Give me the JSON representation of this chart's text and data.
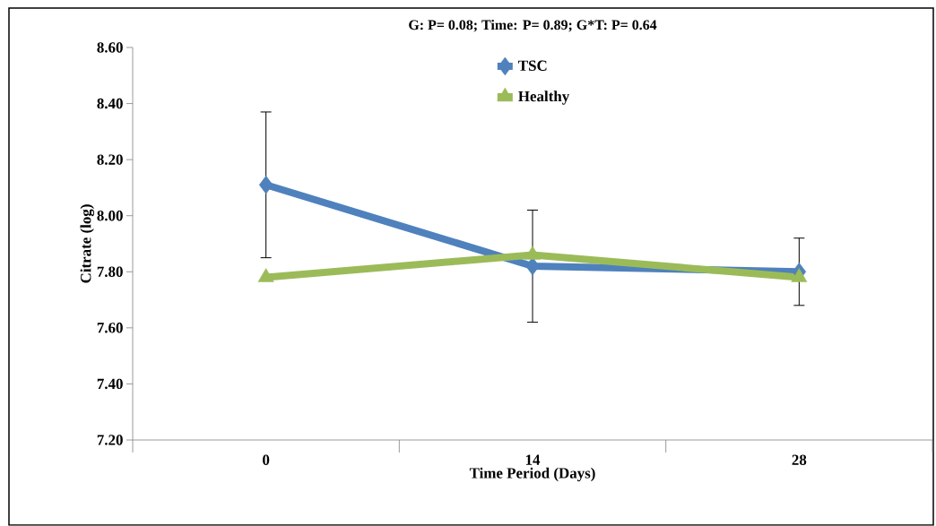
{
  "chart_data": {
    "type": "line",
    "title": "G: P= 0.08; Time: P= 0.89; G*T: P= 0.64",
    "xlabel": "Time Period (Days)",
    "ylabel": "Citrate (log)",
    "categories": [
      "0",
      "14",
      "28"
    ],
    "series": [
      {
        "name": "TSC",
        "color": "#4f81bd",
        "marker": "diamond",
        "values": [
          8.11,
          7.82,
          7.8
        ],
        "errors": [
          0.26,
          0.2,
          0.12
        ]
      },
      {
        "name": "Healthy",
        "color": "#9bbb59",
        "marker": "triangle",
        "values": [
          7.78,
          7.86,
          7.78
        ]
      }
    ],
    "ylim": [
      7.2,
      8.6
    ],
    "yticks": [
      {
        "value": 7.2,
        "label": "7.20"
      },
      {
        "value": 7.4,
        "label": "7.40"
      },
      {
        "value": 7.6,
        "label": "7.60"
      },
      {
        "value": 7.8,
        "label": "7.80"
      },
      {
        "value": 8.0,
        "label": "8.00"
      },
      {
        "value": 8.2,
        "label": "8.20"
      },
      {
        "value": 8.4,
        "label": "8.40"
      },
      {
        "value": 8.6,
        "label": "8.60"
      }
    ],
    "grid": false,
    "legend": "top",
    "line_style": "solid"
  }
}
